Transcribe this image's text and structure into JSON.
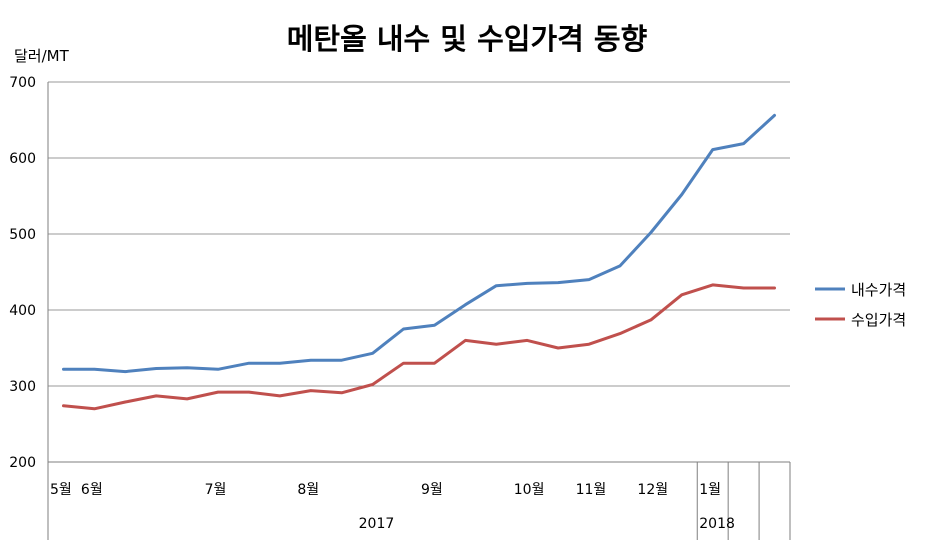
{
  "chart_data": {
    "type": "line",
    "title": "메탄올 내수 및 수입가격 동향",
    "ylabel": "달러/MT",
    "ylim": [
      200,
      700
    ],
    "yticks": [
      200,
      300,
      400,
      500,
      600,
      700
    ],
    "grid": true,
    "legend_position": "right",
    "x_count": 24,
    "month_labels": [
      {
        "label": "5월",
        "index": 0
      },
      {
        "label": "6월",
        "index": 1
      },
      {
        "label": "7월",
        "index": 5
      },
      {
        "label": "8월",
        "index": 8
      },
      {
        "label": "9월",
        "index": 12
      },
      {
        "label": "10월",
        "index": 15
      },
      {
        "label": "11월",
        "index": 17
      },
      {
        "label": "12월",
        "index": 19
      },
      {
        "label": "1월",
        "index": 21
      }
    ],
    "year_labels": [
      {
        "label": "2017",
        "index": 10
      },
      {
        "label": "2018",
        "index": 21
      }
    ],
    "series": [
      {
        "name": "내수가격",
        "color": "#4f81bd",
        "values": [
          322,
          322,
          319,
          323,
          324,
          322,
          330,
          330,
          334,
          334,
          343,
          375,
          380,
          407,
          432,
          435,
          436,
          440,
          458,
          502,
          552,
          611,
          619,
          656
        ]
      },
      {
        "name": "수입가격",
        "color": "#c0504d",
        "values": [
          274,
          270,
          279,
          287,
          283,
          292,
          292,
          287,
          294,
          291,
          302,
          330,
          330,
          360,
          355,
          360,
          350,
          355,
          369,
          387,
          420,
          433,
          429,
          429
        ]
      }
    ]
  }
}
